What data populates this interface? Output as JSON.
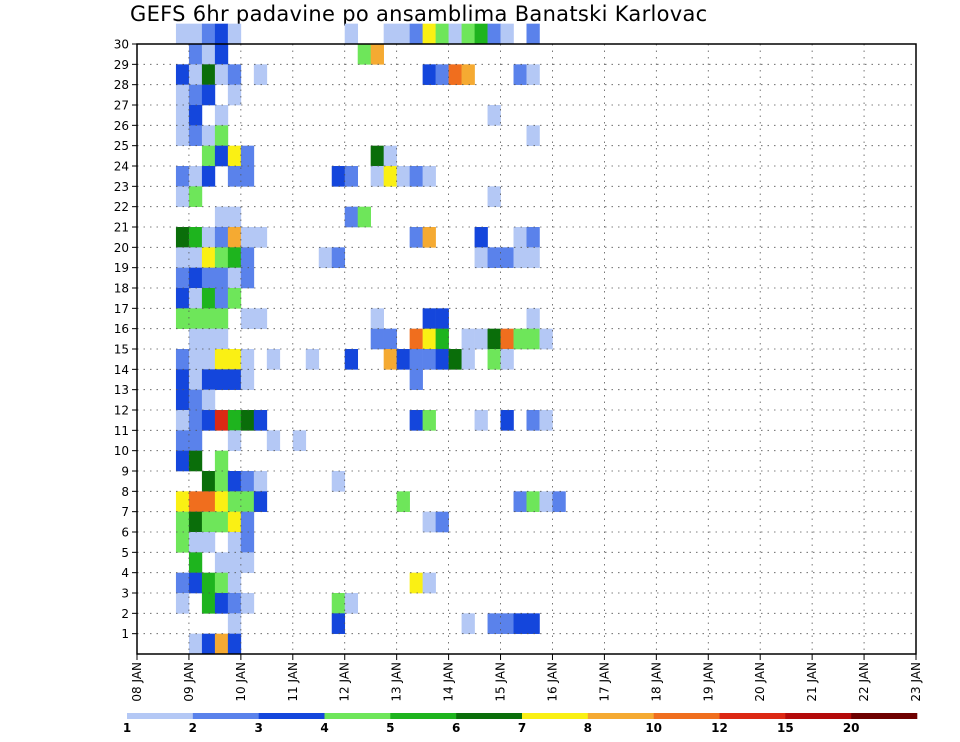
{
  "chart_data": {
    "type": "heatmap",
    "title": "GEFS 6hr padavine po ansamblima Banatski Karlovac",
    "x_tick_labels": [
      "08 JAN",
      "09 JAN",
      "10 JAN",
      "11 JAN",
      "12 JAN",
      "13 JAN",
      "14 JAN",
      "15 JAN",
      "16 JAN",
      "17 JAN",
      "18 JAN",
      "19 JAN",
      "20 JAN",
      "21 JAN",
      "22 JAN",
      "23 JAN"
    ],
    "y_tick_labels": [
      "1",
      "2",
      "3",
      "4",
      "5",
      "6",
      "7",
      "8",
      "9",
      "10",
      "11",
      "12",
      "13",
      "14",
      "15",
      "16",
      "17",
      "18",
      "19",
      "20",
      "21",
      "22",
      "23",
      "24",
      "25",
      "26",
      "27",
      "28",
      "29",
      "30"
    ],
    "x_unit": "6-hour step from 08 JAN 00z",
    "ylim": [
      0,
      30
    ],
    "grid": true,
    "legend": {
      "placement": "bottom",
      "labels": [
        "1",
        "2",
        "3",
        "4",
        "5",
        "6",
        "7",
        "8",
        "10",
        "12",
        "15",
        "20"
      ],
      "colors": [
        "#b4c8f5",
        "#5a82eb",
        "#1446dc",
        "#6ee65a",
        "#1eb41e",
        "#0a6e0a",
        "#faf014",
        "#f5aa32",
        "#f06e1e",
        "#dc2814",
        "#b40a0a",
        "#6e0000"
      ]
    },
    "cells": [
      [
        30,
        3,
        0
      ],
      [
        30,
        4,
        0
      ],
      [
        30,
        5,
        1
      ],
      [
        30,
        6,
        2
      ],
      [
        30,
        7,
        0
      ],
      [
        30,
        16,
        0
      ],
      [
        30,
        19,
        0
      ],
      [
        30,
        20,
        0
      ],
      [
        30,
        21,
        1
      ],
      [
        30,
        22,
        6
      ],
      [
        30,
        23,
        3
      ],
      [
        30,
        24,
        0
      ],
      [
        30,
        25,
        3
      ],
      [
        30,
        26,
        4
      ],
      [
        30,
        27,
        1
      ],
      [
        30,
        28,
        0
      ],
      [
        30,
        30,
        1
      ],
      [
        29,
        4,
        1
      ],
      [
        29,
        5,
        0
      ],
      [
        29,
        6,
        2
      ],
      [
        29,
        17,
        3
      ],
      [
        29,
        18,
        7
      ],
      [
        28,
        3,
        2
      ],
      [
        28,
        4,
        0
      ],
      [
        28,
        5,
        5
      ],
      [
        28,
        6,
        0
      ],
      [
        28,
        7,
        1
      ],
      [
        28,
        9,
        0
      ],
      [
        28,
        22,
        2
      ],
      [
        28,
        23,
        1
      ],
      [
        28,
        24,
        8
      ],
      [
        28,
        25,
        7
      ],
      [
        28,
        29,
        1
      ],
      [
        28,
        30,
        0
      ],
      [
        27,
        3,
        0
      ],
      [
        27,
        4,
        1
      ],
      [
        27,
        5,
        2
      ],
      [
        27,
        7,
        0
      ],
      [
        26,
        3,
        0
      ],
      [
        26,
        4,
        2
      ],
      [
        26,
        6,
        0
      ],
      [
        26,
        27,
        0
      ],
      [
        25,
        3,
        0
      ],
      [
        25,
        4,
        1
      ],
      [
        25,
        5,
        0
      ],
      [
        25,
        6,
        3
      ],
      [
        25,
        30,
        0
      ],
      [
        24,
        5,
        3
      ],
      [
        24,
        6,
        2
      ],
      [
        24,
        7,
        6
      ],
      [
        24,
        8,
        1
      ],
      [
        24,
        18,
        5
      ],
      [
        24,
        19,
        0
      ],
      [
        23,
        3,
        1
      ],
      [
        23,
        4,
        0
      ],
      [
        23,
        5,
        2
      ],
      [
        23,
        7,
        1
      ],
      [
        23,
        8,
        1
      ],
      [
        23,
        15,
        2
      ],
      [
        23,
        16,
        1
      ],
      [
        23,
        18,
        0
      ],
      [
        23,
        19,
        6
      ],
      [
        23,
        20,
        0
      ],
      [
        23,
        21,
        1
      ],
      [
        23,
        22,
        0
      ],
      [
        22,
        3,
        0
      ],
      [
        22,
        4,
        3
      ],
      [
        22,
        27,
        0
      ],
      [
        21,
        6,
        0
      ],
      [
        21,
        7,
        0
      ],
      [
        21,
        16,
        1
      ],
      [
        21,
        17,
        3
      ],
      [
        20,
        3,
        5
      ],
      [
        20,
        4,
        4
      ],
      [
        20,
        5,
        0
      ],
      [
        20,
        6,
        1
      ],
      [
        20,
        7,
        7
      ],
      [
        20,
        8,
        0
      ],
      [
        20,
        9,
        0
      ],
      [
        20,
        21,
        1
      ],
      [
        20,
        22,
        7
      ],
      [
        20,
        26,
        2
      ],
      [
        20,
        29,
        0
      ],
      [
        20,
        30,
        1
      ],
      [
        19,
        3,
        0
      ],
      [
        19,
        4,
        0
      ],
      [
        19,
        5,
        6
      ],
      [
        19,
        6,
        3
      ],
      [
        19,
        7,
        4
      ],
      [
        19,
        8,
        1
      ],
      [
        19,
        14,
        0
      ],
      [
        19,
        15,
        1
      ],
      [
        19,
        26,
        0
      ],
      [
        19,
        27,
        1
      ],
      [
        19,
        28,
        1
      ],
      [
        19,
        29,
        0
      ],
      [
        19,
        30,
        0
      ],
      [
        18,
        3,
        1
      ],
      [
        18,
        4,
        2
      ],
      [
        18,
        5,
        1
      ],
      [
        18,
        6,
        1
      ],
      [
        18,
        7,
        0
      ],
      [
        18,
        8,
        1
      ],
      [
        17,
        3,
        2
      ],
      [
        17,
        4,
        0
      ],
      [
        17,
        5,
        4
      ],
      [
        17,
        6,
        1
      ],
      [
        17,
        7,
        3
      ],
      [
        16,
        3,
        3
      ],
      [
        16,
        4,
        3
      ],
      [
        16,
        5,
        3
      ],
      [
        16,
        6,
        3
      ],
      [
        16,
        8,
        0
      ],
      [
        16,
        9,
        0
      ],
      [
        16,
        18,
        0
      ],
      [
        16,
        22,
        2
      ],
      [
        16,
        23,
        2
      ],
      [
        16,
        30,
        0
      ],
      [
        15,
        4,
        0
      ],
      [
        15,
        5,
        0
      ],
      [
        15,
        6,
        0
      ],
      [
        15,
        18,
        1
      ],
      [
        15,
        19,
        1
      ],
      [
        15,
        21,
        8
      ],
      [
        15,
        22,
        6
      ],
      [
        15,
        23,
        4
      ],
      [
        15,
        25,
        0
      ],
      [
        15,
        26,
        0
      ],
      [
        15,
        27,
        5
      ],
      [
        15,
        28,
        8
      ],
      [
        15,
        29,
        3
      ],
      [
        15,
        30,
        3
      ],
      [
        15,
        31,
        0
      ],
      [
        14,
        3,
        1
      ],
      [
        14,
        4,
        0
      ],
      [
        14,
        5,
        0
      ],
      [
        14,
        6,
        6
      ],
      [
        14,
        7,
        6
      ],
      [
        14,
        8,
        0
      ],
      [
        14,
        10,
        0
      ],
      [
        14,
        13,
        0
      ],
      [
        14,
        16,
        2
      ],
      [
        14,
        19,
        7
      ],
      [
        14,
        20,
        2
      ],
      [
        14,
        21,
        1
      ],
      [
        14,
        22,
        1
      ],
      [
        14,
        23,
        2
      ],
      [
        14,
        24,
        5
      ],
      [
        14,
        25,
        0
      ],
      [
        14,
        27,
        3
      ],
      [
        14,
        28,
        0
      ],
      [
        13,
        3,
        2
      ],
      [
        13,
        4,
        0
      ],
      [
        13,
        5,
        2
      ],
      [
        13,
        6,
        2
      ],
      [
        13,
        7,
        2
      ],
      [
        13,
        8,
        0
      ],
      [
        13,
        21,
        1
      ],
      [
        12,
        3,
        2
      ],
      [
        12,
        4,
        1
      ],
      [
        12,
        5,
        0
      ],
      [
        11,
        3,
        0
      ],
      [
        11,
        4,
        1
      ],
      [
        11,
        5,
        2
      ],
      [
        11,
        6,
        9
      ],
      [
        11,
        7,
        4
      ],
      [
        11,
        8,
        5
      ],
      [
        11,
        9,
        2
      ],
      [
        11,
        21,
        2
      ],
      [
        11,
        22,
        3
      ],
      [
        11,
        26,
        0
      ],
      [
        11,
        28,
        2
      ],
      [
        11,
        30,
        1
      ],
      [
        11,
        31,
        0
      ],
      [
        10,
        3,
        1
      ],
      [
        10,
        4,
        1
      ],
      [
        10,
        7,
        0
      ],
      [
        10,
        10,
        0
      ],
      [
        10,
        12,
        0
      ],
      [
        9,
        3,
        2
      ],
      [
        9,
        4,
        5
      ],
      [
        9,
        6,
        3
      ],
      [
        8,
        5,
        5
      ],
      [
        8,
        6,
        3
      ],
      [
        8,
        7,
        2
      ],
      [
        8,
        8,
        1
      ],
      [
        8,
        9,
        0
      ],
      [
        8,
        15,
        0
      ],
      [
        7,
        3,
        6
      ],
      [
        7,
        4,
        8
      ],
      [
        7,
        5,
        8
      ],
      [
        7,
        6,
        6
      ],
      [
        7,
        7,
        3
      ],
      [
        7,
        8,
        3
      ],
      [
        7,
        9,
        2
      ],
      [
        7,
        20,
        3
      ],
      [
        7,
        29,
        1
      ],
      [
        7,
        30,
        3
      ],
      [
        7,
        31,
        0
      ],
      [
        7,
        32,
        1
      ],
      [
        6,
        3,
        3
      ],
      [
        6,
        4,
        5
      ],
      [
        6,
        5,
        3
      ],
      [
        6,
        6,
        3
      ],
      [
        6,
        7,
        6
      ],
      [
        6,
        8,
        1
      ],
      [
        6,
        22,
        0
      ],
      [
        6,
        23,
        1
      ],
      [
        5,
        3,
        3
      ],
      [
        5,
        4,
        0
      ],
      [
        5,
        5,
        0
      ],
      [
        5,
        7,
        0
      ],
      [
        5,
        8,
        1
      ],
      [
        4,
        4,
        4
      ],
      [
        4,
        6,
        0
      ],
      [
        4,
        7,
        0
      ],
      [
        4,
        8,
        0
      ],
      [
        3,
        3,
        1
      ],
      [
        3,
        4,
        2
      ],
      [
        3,
        5,
        4
      ],
      [
        3,
        6,
        3
      ],
      [
        3,
        7,
        0
      ],
      [
        3,
        21,
        6
      ],
      [
        3,
        22,
        0
      ],
      [
        2,
        3,
        0
      ],
      [
        2,
        5,
        4
      ],
      [
        2,
        6,
        2
      ],
      [
        2,
        7,
        1
      ],
      [
        2,
        8,
        0
      ],
      [
        2,
        15,
        3
      ],
      [
        2,
        16,
        0
      ],
      [
        1,
        7,
        0
      ],
      [
        1,
        15,
        2
      ],
      [
        1,
        25,
        0
      ],
      [
        1,
        27,
        1
      ],
      [
        1,
        28,
        1
      ],
      [
        1,
        29,
        2
      ],
      [
        1,
        30,
        2
      ],
      [
        0,
        4,
        0
      ],
      [
        0,
        5,
        2
      ],
      [
        0,
        6,
        7
      ],
      [
        0,
        7,
        2
      ]
    ]
  }
}
